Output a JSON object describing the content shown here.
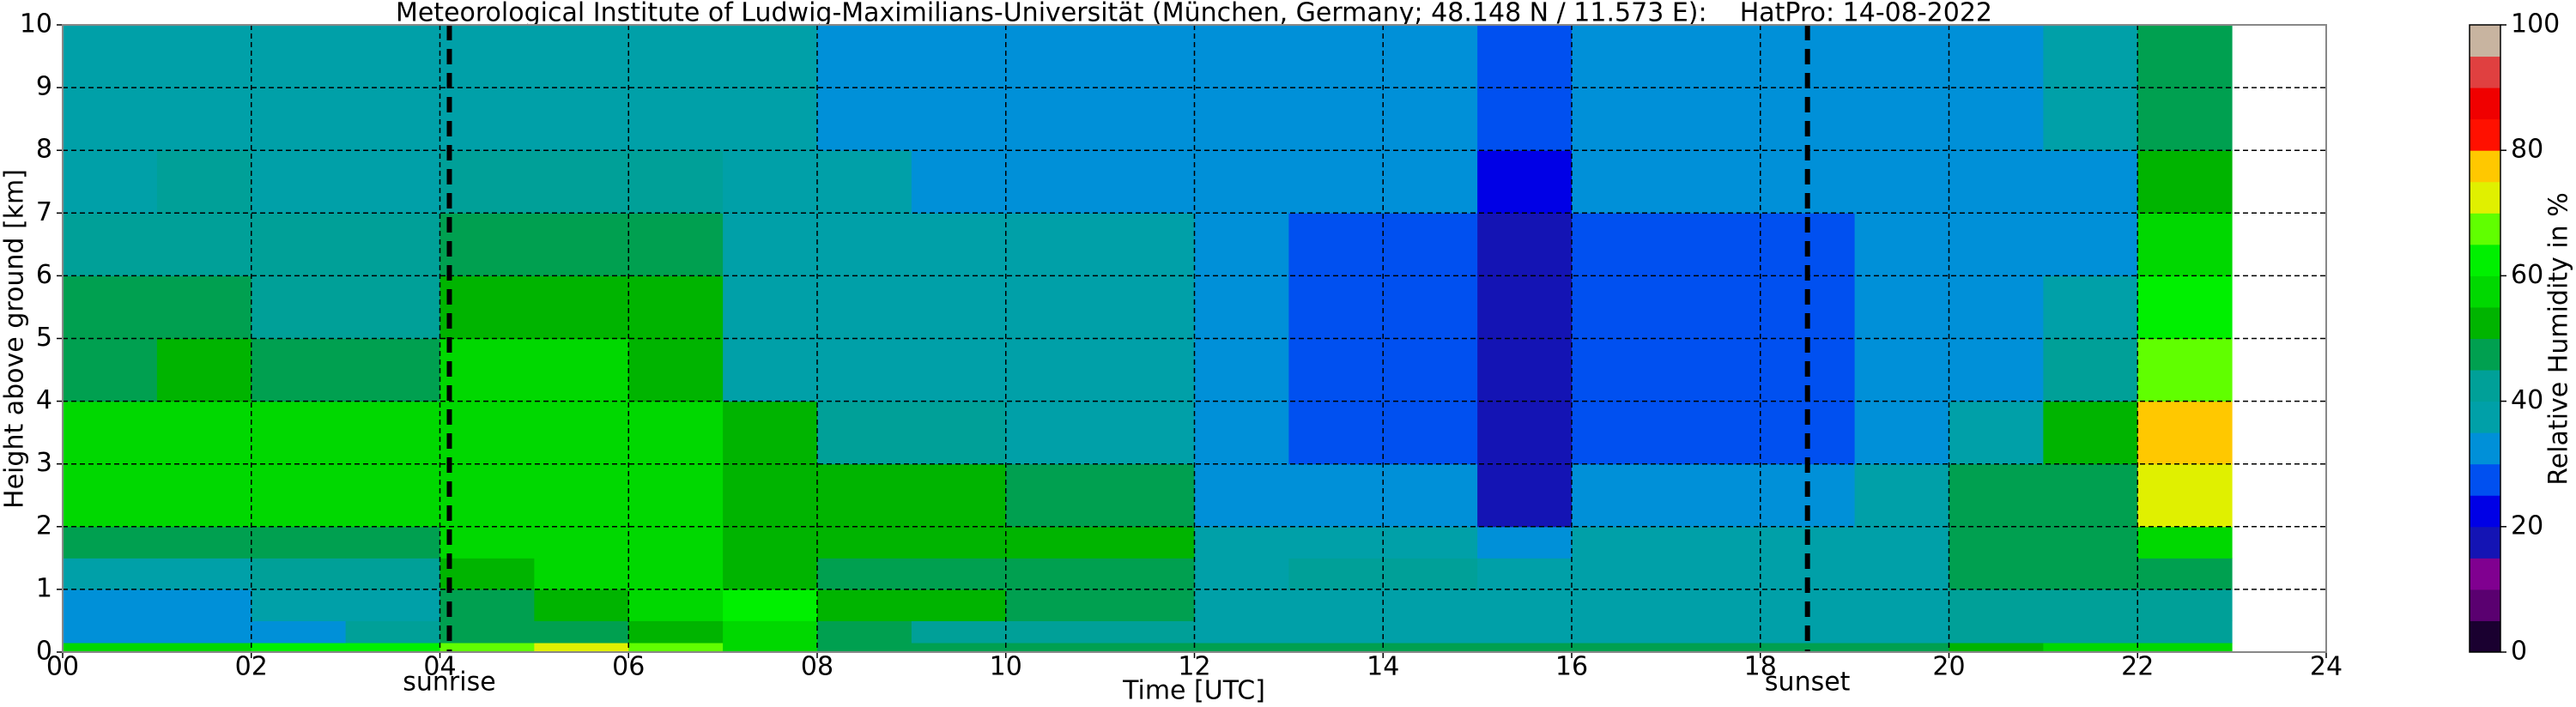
{
  "chart_data": {
    "type": "heatmap",
    "title": "Meteorological Institute of Ludwig-Maximilians-Universität (München, Germany; 48.148 N / 11.573 E):    HatPro: 14-08-2022",
    "x_label": "Time [UTC]",
    "y_label": "Height above ground [km]",
    "colorbar_label": "Relative Humidity in %",
    "x": [
      0,
      1,
      2,
      3,
      4,
      5,
      6,
      7,
      8,
      9,
      10,
      11,
      12,
      13,
      14,
      15,
      16,
      17,
      18,
      19,
      20,
      21,
      22,
      23
    ],
    "y": [
      0,
      0.15,
      0.5,
      1,
      1.5,
      2,
      3,
      4,
      5,
      6,
      7,
      8,
      9,
      10
    ],
    "values": [
      [
        58,
        58,
        60,
        62,
        68,
        72,
        65,
        55,
        48,
        45,
        45,
        45,
        45,
        45,
        45,
        45,
        45,
        45,
        45,
        45,
        50,
        55,
        58
      ],
      [
        32,
        32,
        33,
        42,
        45,
        48,
        50,
        55,
        48,
        40,
        40,
        40,
        38,
        38,
        38,
        38,
        38,
        38,
        38,
        38,
        40,
        40,
        42
      ],
      [
        32,
        32,
        36,
        38,
        48,
        50,
        55,
        60,
        52,
        50,
        48,
        48,
        38,
        38,
        38,
        38,
        38,
        38,
        38,
        38,
        40,
        40,
        40
      ],
      [
        38,
        38,
        40,
        42,
        52,
        55,
        55,
        50,
        48,
        48,
        48,
        48,
        38,
        42,
        40,
        38,
        38,
        38,
        38,
        38,
        45,
        45,
        48
      ],
      [
        48,
        46,
        48,
        48,
        56,
        58,
        58,
        52,
        50,
        50,
        50,
        50,
        38,
        38,
        37,
        30,
        37,
        37,
        37,
        36,
        48,
        48,
        55
      ],
      [
        55,
        55,
        55,
        55,
        58,
        58,
        58,
        52,
        52,
        52,
        48,
        48,
        33,
        33,
        33,
        18,
        33,
        33,
        33,
        38,
        48,
        48,
        72
      ],
      [
        55,
        55,
        55,
        55,
        58,
        58,
        58,
        52,
        40,
        40,
        38,
        38,
        32,
        27,
        27,
        15,
        28,
        28,
        28,
        32,
        38,
        50,
        75
      ],
      [
        48,
        50,
        48,
        48,
        55,
        55,
        50,
        38,
        38,
        38,
        38,
        38,
        30,
        25,
        25,
        15,
        25,
        25,
        25,
        30,
        30,
        42,
        65
      ],
      [
        45,
        45,
        42,
        42,
        50,
        50,
        50,
        38,
        38,
        38,
        38,
        38,
        30,
        25,
        25,
        15,
        25,
        25,
        25,
        30,
        30,
        35,
        60
      ],
      [
        40,
        40,
        40,
        40,
        47,
        47,
        47,
        37,
        37,
        37,
        37,
        37,
        30,
        26,
        26,
        18,
        26,
        26,
        26,
        30,
        30,
        30,
        55
      ],
      [
        38,
        40,
        38,
        38,
        42,
        42,
        42,
        37,
        37,
        33,
        33,
        33,
        30,
        30,
        30,
        22,
        30,
        30,
        30,
        30,
        30,
        32,
        50
      ],
      [
        38,
        38,
        38,
        38,
        38,
        38,
        38,
        38,
        33,
        33,
        33,
        33,
        30,
        30,
        30,
        25,
        30,
        30,
        30,
        30,
        30,
        35,
        47
      ],
      [
        37,
        37,
        37,
        37,
        37,
        37,
        37,
        37,
        33,
        33,
        33,
        33,
        30,
        30,
        30,
        27,
        30,
        30,
        30,
        30,
        30,
        38,
        47
      ]
    ],
    "xlim": [
      0,
      24
    ],
    "xticks": [
      {
        "value": 0,
        "label": "00"
      },
      {
        "value": 2,
        "label": "02"
      },
      {
        "value": 4,
        "label": "04"
      },
      {
        "value": 6,
        "label": "06"
      },
      {
        "value": 8,
        "label": "08"
      },
      {
        "value": 10,
        "label": "10"
      },
      {
        "value": 12,
        "label": "12"
      },
      {
        "value": 14,
        "label": "14"
      },
      {
        "value": 16,
        "label": "16"
      },
      {
        "value": 18,
        "label": "18"
      },
      {
        "value": 20,
        "label": "20"
      },
      {
        "value": 22,
        "label": "22"
      },
      {
        "value": 24,
        "label": "24"
      }
    ],
    "ylim": [
      0,
      10
    ],
    "yticks": [
      0,
      1,
      2,
      3,
      4,
      5,
      6,
      7,
      8,
      9,
      10
    ],
    "grid": true,
    "clim": [
      0,
      100
    ],
    "cticks": [
      0,
      20,
      40,
      60,
      80,
      100
    ],
    "colormap": [
      "#1a0030",
      "#5a0070",
      "#800090",
      "#1414b4",
      "#0000e6",
      "#0050f0",
      "#0090d8",
      "#00a0a8",
      "#00a098",
      "#00a050",
      "#00b400",
      "#00d800",
      "#00f000",
      "#60ff00",
      "#e0f000",
      "#ffc800",
      "#ff1000",
      "#f00000",
      "#e04040",
      "#c8b4a0"
    ],
    "annotations": [
      {
        "x": 4.1,
        "label": "sunrise"
      },
      {
        "x": 18.5,
        "label": "sunset"
      }
    ]
  }
}
